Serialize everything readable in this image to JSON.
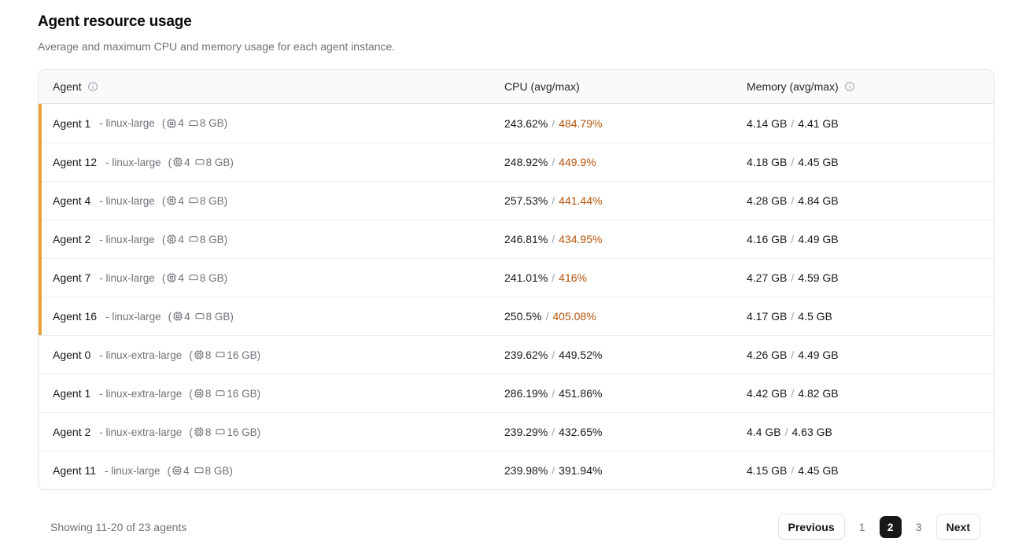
{
  "page": {
    "title": "Agent resource usage",
    "subtitle": "Average and maximum CPU and memory usage for each agent instance."
  },
  "table": {
    "header": {
      "agent": "Agent",
      "cpu": "CPU (avg/max)",
      "memory": "Memory (avg/max)"
    },
    "chrome": {
      "dash": "-",
      "paren_open": "(",
      "paren_close": ")",
      "slash": "/"
    },
    "rows": [
      {
        "name": "Agent 1",
        "type": "linux-large",
        "cpus": "4",
        "mem": "8 GB",
        "cpu_avg": "243.62%",
        "cpu_max": "484.79%",
        "mem_avg": "4.14 GB",
        "mem_max": "4.41 GB",
        "flagged": true
      },
      {
        "name": "Agent 12",
        "type": "linux-large",
        "cpus": "4",
        "mem": "8 GB",
        "cpu_avg": "248.92%",
        "cpu_max": "449.9%",
        "mem_avg": "4.18 GB",
        "mem_max": "4.45 GB",
        "flagged": true
      },
      {
        "name": "Agent 4",
        "type": "linux-large",
        "cpus": "4",
        "mem": "8 GB",
        "cpu_avg": "257.53%",
        "cpu_max": "441.44%",
        "mem_avg": "4.28 GB",
        "mem_max": "4.84 GB",
        "flagged": true
      },
      {
        "name": "Agent 2",
        "type": "linux-large",
        "cpus": "4",
        "mem": "8 GB",
        "cpu_avg": "246.81%",
        "cpu_max": "434.95%",
        "mem_avg": "4.16 GB",
        "mem_max": "4.49 GB",
        "flagged": true
      },
      {
        "name": "Agent 7",
        "type": "linux-large",
        "cpus": "4",
        "mem": "8 GB",
        "cpu_avg": "241.01%",
        "cpu_max": "416%",
        "mem_avg": "4.27 GB",
        "mem_max": "4.59 GB",
        "flagged": true
      },
      {
        "name": "Agent 16",
        "type": "linux-large",
        "cpus": "4",
        "mem": "8 GB",
        "cpu_avg": "250.5%",
        "cpu_max": "405.08%",
        "mem_avg": "4.17 GB",
        "mem_max": "4.5 GB",
        "flagged": true
      },
      {
        "name": "Agent 0",
        "type": "linux-extra-large",
        "cpus": "8",
        "mem": "16 GB",
        "cpu_avg": "239.62%",
        "cpu_max": "449.52%",
        "mem_avg": "4.26 GB",
        "mem_max": "4.49 GB",
        "flagged": false
      },
      {
        "name": "Agent 1",
        "type": "linux-extra-large",
        "cpus": "8",
        "mem": "16 GB",
        "cpu_avg": "286.19%",
        "cpu_max": "451.86%",
        "mem_avg": "4.42 GB",
        "mem_max": "4.82 GB",
        "flagged": false
      },
      {
        "name": "Agent 2",
        "type": "linux-extra-large",
        "cpus": "8",
        "mem": "16 GB",
        "cpu_avg": "239.29%",
        "cpu_max": "432.65%",
        "mem_avg": "4.4 GB",
        "mem_max": "4.63 GB",
        "flagged": false
      },
      {
        "name": "Agent 11",
        "type": "linux-large",
        "cpus": "4",
        "mem": "8 GB",
        "cpu_avg": "239.98%",
        "cpu_max": "391.94%",
        "mem_avg": "4.15 GB",
        "mem_max": "4.45 GB",
        "flagged": false
      }
    ]
  },
  "footer": {
    "summary": "Showing 11-20 of 23 agents",
    "pagination": {
      "previous_label": "Previous",
      "next_label": "Next",
      "pages": [
        "1",
        "2",
        "3"
      ],
      "active_page": "2"
    }
  },
  "colors": {
    "warning_text": "#b45309",
    "warning_strip": "#e9a23b",
    "active_page_bg": "#18181b"
  },
  "icons": {
    "agent_header": "info-icon",
    "memory_header": "info-icon",
    "cpu_spec": "cpu-chip-icon",
    "memory_spec": "ram-icon"
  }
}
